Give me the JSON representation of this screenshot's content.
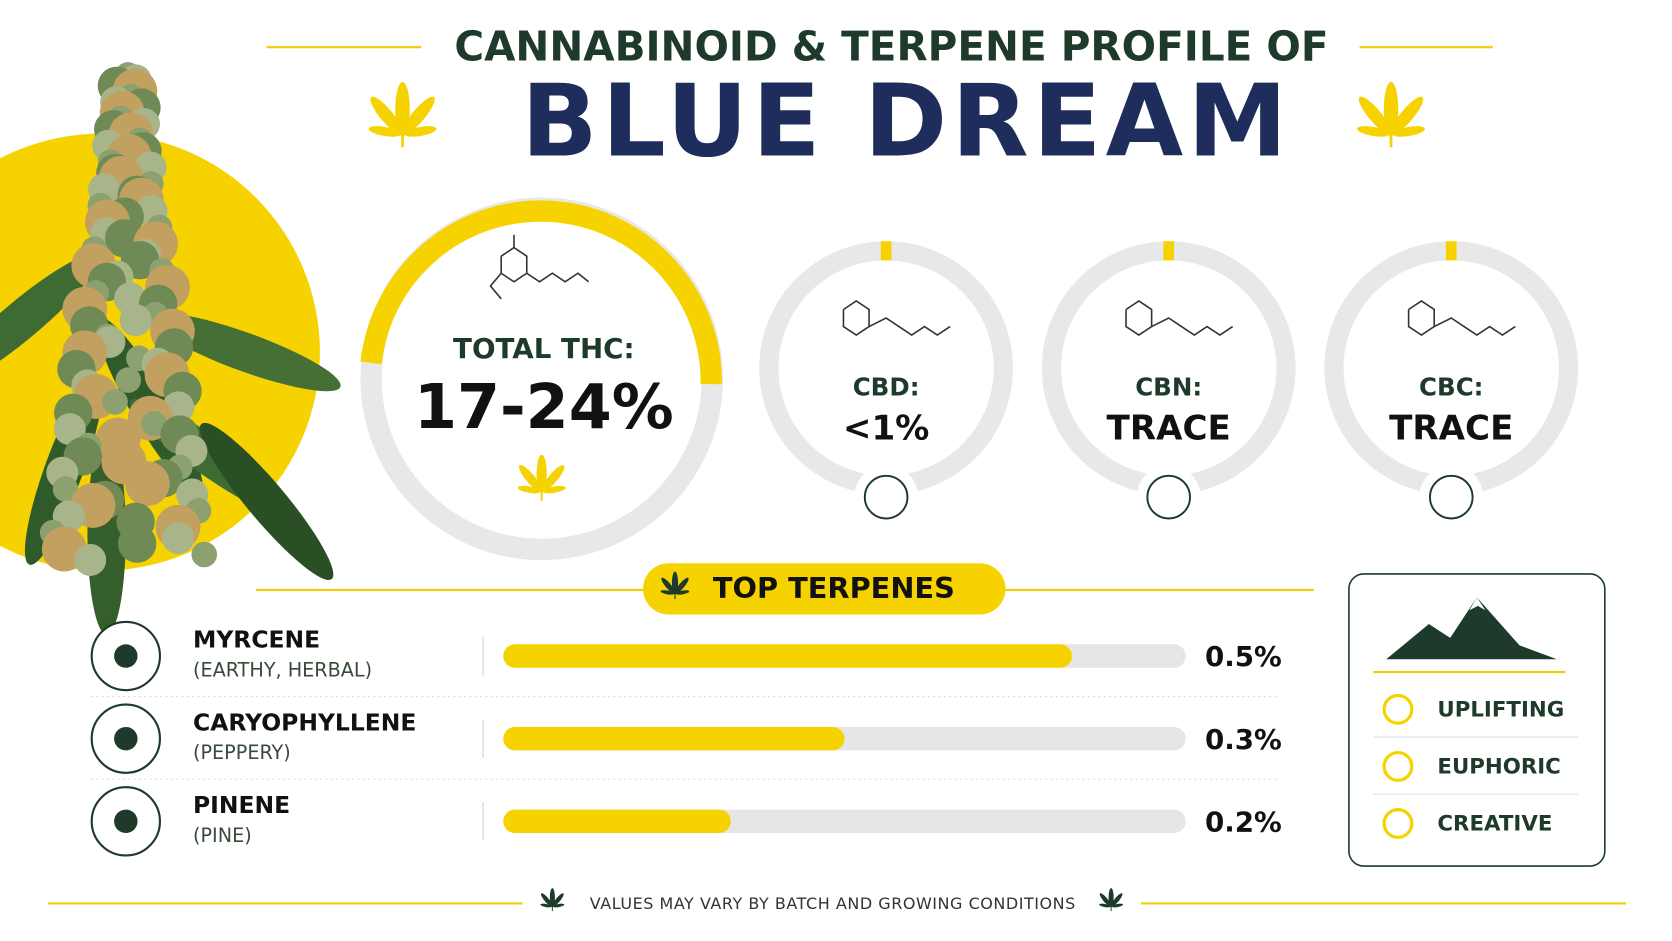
{
  "header": {
    "title": "CANNABINOID & TERPENE PROFILE OF",
    "strain": "BLUE DREAM"
  },
  "cannabinoids": [
    {
      "label": "TOTAL THC:",
      "value": "17-24%"
    },
    {
      "label": "CBD:",
      "value": "<1%"
    },
    {
      "label": "CBN:",
      "value": "TRACE"
    },
    {
      "label": "CBC:",
      "value": "TRACE"
    }
  ],
  "terpenes": {
    "title": "TOP TERPENES",
    "xlim": [
      0,
      0.6
    ],
    "color": "#f6d300",
    "items": [
      {
        "name": "MYRCENE",
        "note": "(EARTHY, HERBAL)",
        "value": 0.5,
        "value_label": "0.5%"
      },
      {
        "name": "CARYOPHYLLENE",
        "note": "(PEPPERY)",
        "value": 0.3,
        "value_label": "0.3%"
      },
      {
        "name": "PINENE",
        "note": "(PINE)",
        "value": 0.2,
        "value_label": "0.2%"
      }
    ]
  },
  "effects": [
    "UPLIFTING",
    "EUPHORIC",
    "CREATIVE"
  ],
  "footer": "VALUES MAY VARY BY BATCH AND GROWING CONDITIONS"
}
